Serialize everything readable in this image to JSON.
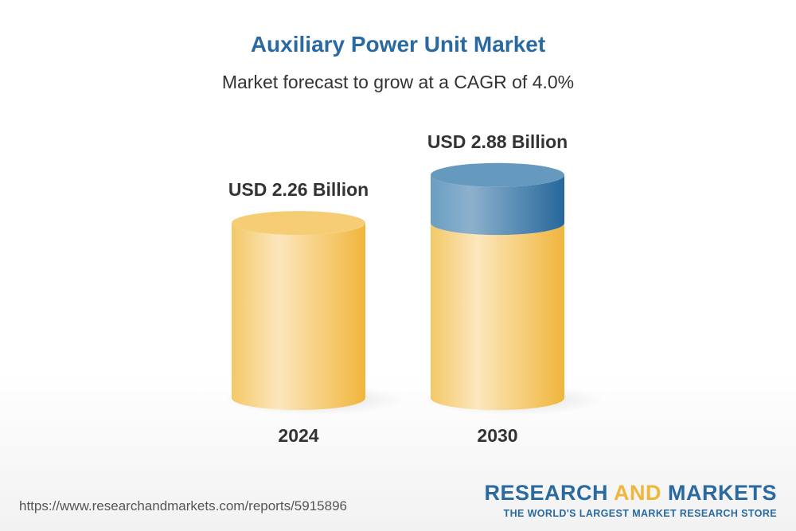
{
  "chart_data": {
    "type": "bar",
    "title": "Auxiliary Power Unit Market",
    "subtitle": "Market forecast to grow at a CAGR of 4.0%",
    "categories": [
      "2024",
      "2030"
    ],
    "values": [
      2.26,
      2.88
    ],
    "value_labels": [
      "USD 2.26 Billion",
      "USD 2.88 Billion"
    ],
    "unit": "USD Billion",
    "style": "3d-cylinder",
    "colors": {
      "base": "#f2c057",
      "growth": "#3f7fb0",
      "title": "#2a6aa0"
    },
    "grid": false
  },
  "footer": {
    "url": "https://www.researchandmarkets.com/reports/5915896",
    "logo_line1_a": "RESEARCH ",
    "logo_line1_b": "AND",
    "logo_line1_c": " MARKETS",
    "logo_line2": "THE WORLD'S LARGEST MARKET RESEARCH STORE"
  }
}
